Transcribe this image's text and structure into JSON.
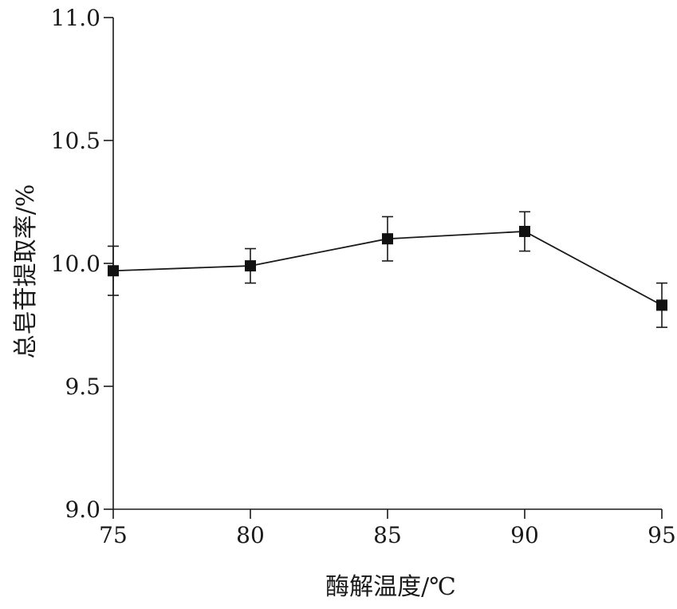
{
  "chart_data": {
    "type": "line",
    "title": "",
    "xlabel": "酶解温度/℃",
    "ylabel": "总皂苷提取率/%",
    "x": [
      75,
      80,
      85,
      90,
      95
    ],
    "xticks": [
      75,
      80,
      85,
      90,
      95
    ],
    "xlim": [
      75,
      95
    ],
    "yticks": [
      "9.0",
      "9.5",
      "10.0",
      "10.5",
      "11.0"
    ],
    "ylim": [
      9.0,
      11.0
    ],
    "grid": false,
    "series": [
      {
        "values": [
          9.97,
          9.99,
          10.1,
          10.13,
          9.83
        ],
        "errors": [
          0.1,
          0.07,
          0.09,
          0.08,
          0.09
        ],
        "marker": "square",
        "color": "#111111"
      }
    ]
  }
}
